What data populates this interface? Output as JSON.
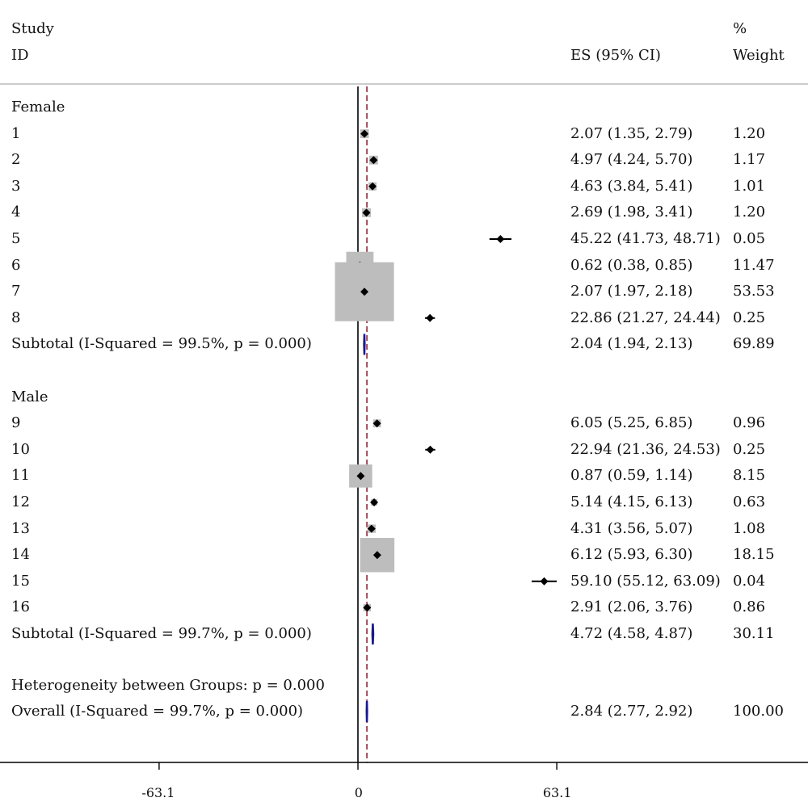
{
  "headers": {
    "study_line1": "Study",
    "study_line2": "ID",
    "es": "ES (95% CI)",
    "weight_line1": "%",
    "weight_line2": "Weight"
  },
  "chart_data": {
    "type": "forest",
    "x_axis": {
      "ticks": [
        -63.1,
        0,
        63.1
      ],
      "tick_labels": [
        "-63.1",
        "0",
        "63.1"
      ],
      "range": [
        -113,
        141
      ],
      "null_line": 0,
      "overall_effect_line": 2.84
    },
    "groups": [
      {
        "label": "Female",
        "studies": [
          {
            "id": "1",
            "es": 2.07,
            "lo": 1.35,
            "hi": 2.79,
            "es_text": "2.07 (1.35, 2.79)",
            "weight": 1.2,
            "weight_text": "1.20"
          },
          {
            "id": "2",
            "es": 4.97,
            "lo": 4.24,
            "hi": 5.7,
            "es_text": "4.97 (4.24, 5.70)",
            "weight": 1.17,
            "weight_text": "1.17"
          },
          {
            "id": "3",
            "es": 4.63,
            "lo": 3.84,
            "hi": 5.41,
            "es_text": "4.63 (3.84, 5.41)",
            "weight": 1.01,
            "weight_text": "1.01"
          },
          {
            "id": "4",
            "es": 2.69,
            "lo": 1.98,
            "hi": 3.41,
            "es_text": "2.69 (1.98, 3.41)",
            "weight": 1.2,
            "weight_text": "1.20"
          },
          {
            "id": "5",
            "es": 45.22,
            "lo": 41.73,
            "hi": 48.71,
            "es_text": "45.22 (41.73, 48.71)",
            "weight": 0.05,
            "weight_text": "0.05"
          },
          {
            "id": "6",
            "es": 0.62,
            "lo": 0.38,
            "hi": 0.85,
            "es_text": "0.62 (0.38, 0.85)",
            "weight": 11.47,
            "weight_text": "11.47"
          },
          {
            "id": "7",
            "es": 2.07,
            "lo": 1.97,
            "hi": 2.18,
            "es_text": "2.07 (1.97, 2.18)",
            "weight": 53.53,
            "weight_text": "53.53"
          },
          {
            "id": "8",
            "es": 22.86,
            "lo": 21.27,
            "hi": 24.44,
            "es_text": "22.86 (21.27, 24.44)",
            "weight": 0.25,
            "weight_text": "0.25"
          }
        ],
        "subtotal": {
          "label": "Subtotal  (I-Squared = 99.5%, p = 0.000)",
          "es": 2.04,
          "lo": 1.94,
          "hi": 2.13,
          "es_text": "2.04 (1.94, 2.13)",
          "weight_text": "69.89"
        }
      },
      {
        "label": "Male",
        "studies": [
          {
            "id": "9",
            "es": 6.05,
            "lo": 5.25,
            "hi": 6.85,
            "es_text": "6.05 (5.25, 6.85)",
            "weight": 0.96,
            "weight_text": "0.96"
          },
          {
            "id": "10",
            "es": 22.94,
            "lo": 21.36,
            "hi": 24.53,
            "es_text": "22.94 (21.36, 24.53)",
            "weight": 0.25,
            "weight_text": "0.25"
          },
          {
            "id": "11",
            "es": 0.87,
            "lo": 0.59,
            "hi": 1.14,
            "es_text": "0.87 (0.59, 1.14)",
            "weight": 8.15,
            "weight_text": "8.15"
          },
          {
            "id": "12",
            "es": 5.14,
            "lo": 4.15,
            "hi": 6.13,
            "es_text": "5.14 (4.15, 6.13)",
            "weight": 0.63,
            "weight_text": "0.63"
          },
          {
            "id": "13",
            "es": 4.31,
            "lo": 3.56,
            "hi": 5.07,
            "es_text": "4.31 (3.56, 5.07)",
            "weight": 1.08,
            "weight_text": "1.08"
          },
          {
            "id": "14",
            "es": 6.12,
            "lo": 5.93,
            "hi": 6.3,
            "es_text": "6.12 (5.93, 6.30)",
            "weight": 18.15,
            "weight_text": "18.15"
          },
          {
            "id": "15",
            "es": 59.1,
            "lo": 55.12,
            "hi": 63.09,
            "es_text": "59.10 (55.12, 63.09)",
            "weight": 0.04,
            "weight_text": "0.04"
          },
          {
            "id": "16",
            "es": 2.91,
            "lo": 2.06,
            "hi": 3.76,
            "es_text": "2.91 (2.06, 3.76)",
            "weight": 0.86,
            "weight_text": "0.86"
          }
        ],
        "subtotal": {
          "label": "Subtotal  (I-Squared = 99.7%, p = 0.000)",
          "es": 4.72,
          "lo": 4.58,
          "hi": 4.87,
          "es_text": "4.72 (4.58, 4.87)",
          "weight_text": "30.11"
        }
      }
    ],
    "heterogeneity": "Heterogeneity between Groups: p = 0.000",
    "overall": {
      "label": "Overall  (I-Squared = 99.7%, p = 0.000)",
      "es": 2.84,
      "lo": 2.77,
      "hi": 2.92,
      "es_text": "2.84 (2.77, 2.92)",
      "weight_text": "100.00"
    }
  },
  "colors": {
    "weight_box": "#bdbdbd",
    "point": "#000000",
    "pooled_diamond": "#1a1a8c",
    "overall_line": "#8b2a3a",
    "separator": "#cccccc"
  }
}
